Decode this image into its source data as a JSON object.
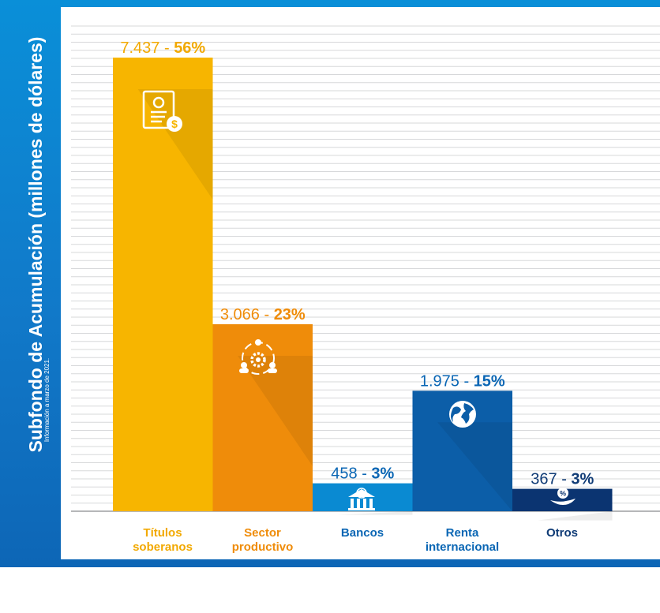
{
  "colors": {
    "frame": "#0c7fcf",
    "grid": "#d7d8da",
    "yellow": "#f7b500",
    "orange": "#ef8c0a",
    "light_blue": "#0a8ad2",
    "mid_blue": "#0c5ea8",
    "navy": "#0b3471",
    "text_yellow": "#f2a900",
    "text_blue": "#0a66b4",
    "text_navy": "#0e3a75"
  },
  "axis": {
    "ylabel": "Subfondo de Acumulación (millones de dólares)",
    "note": "Información a marzo de 2021."
  },
  "chart_data": {
    "type": "bar",
    "ylabel": "Subfondo de Acumulación (millones de dólares)",
    "categories": [
      "Títulos soberanos",
      "Sector productivo",
      "Bancos",
      "Renta internacional",
      "Otros"
    ],
    "category_lines": [
      [
        "Títulos",
        "soberanos"
      ],
      [
        "Sector",
        "productivo"
      ],
      [
        "Bancos"
      ],
      [
        "Renta",
        "internacional"
      ],
      [
        "Otros"
      ]
    ],
    "values": [
      7437,
      3066,
      458,
      1975,
      367
    ],
    "value_labels": [
      "7.437",
      "3.066",
      "458",
      "1.975",
      "367"
    ],
    "percent_labels": [
      "56%",
      "23%",
      "3%",
      "15%",
      "3%"
    ],
    "bar_colors": [
      "#f7b500",
      "#ef8c0a",
      "#0a8ad2",
      "#0c5ea8",
      "#0b3471"
    ],
    "label_colors": [
      "#f2a900",
      "#ef8c0a",
      "#0a66b4",
      "#0a66b4",
      "#0e3a75"
    ],
    "icons": [
      "document-dollar-icon",
      "people-gear-icon",
      "bank-dollar-icon",
      "globe-icon",
      "hand-percent-icon"
    ],
    "grid": true,
    "legend": "none"
  }
}
